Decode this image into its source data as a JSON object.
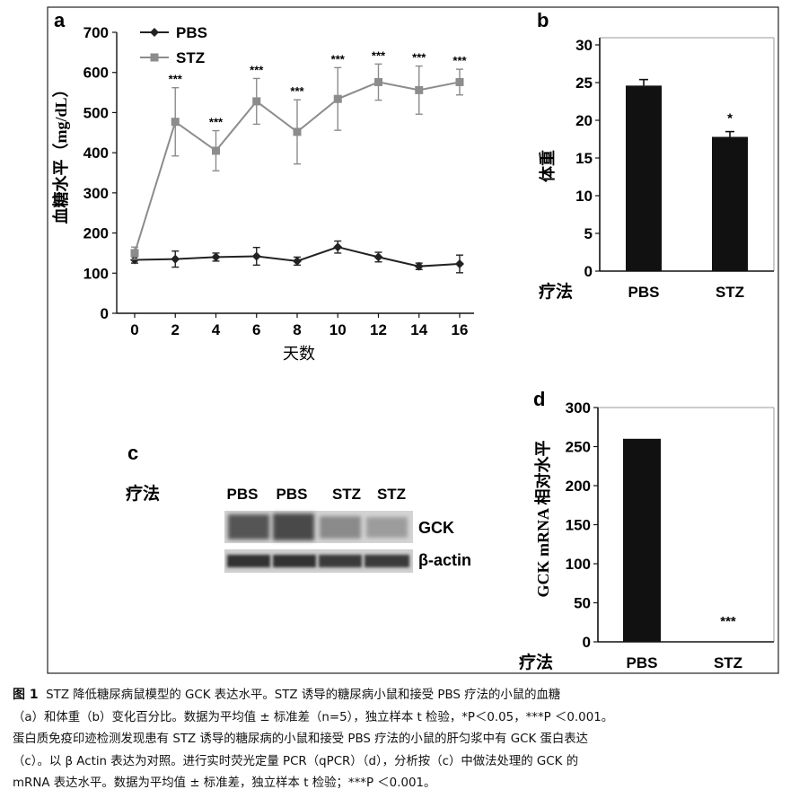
{
  "panel_a": {
    "label": "a",
    "ylabel": "血糖水平（mg/dL）",
    "xlabel": "天数",
    "legend": [
      {
        "name": "PBS",
        "marker": "diamond"
      },
      {
        "name": "STZ",
        "marker": "square"
      }
    ]
  },
  "panel_b": {
    "label": "b",
    "ylabel": "体重",
    "xlabel": "疗法",
    "annotations": [
      "*"
    ]
  },
  "panel_c": {
    "label": "c",
    "treatment_label": "疗法",
    "lanes": [
      "PBS",
      "PBS",
      "STZ",
      "STZ"
    ],
    "band_labels": [
      "GCK",
      "β-actin"
    ]
  },
  "panel_d": {
    "label": "d",
    "ylabel": "GCK mRNA 相对水平",
    "xlabel": "疗法",
    "annotations": [
      "***"
    ]
  },
  "chart_data": [
    {
      "id": "a",
      "type": "line",
      "title": "",
      "xlabel": "天数",
      "ylabel": "血糖水平（mg/dL）",
      "x": [
        0,
        2,
        4,
        6,
        8,
        10,
        12,
        14,
        16
      ],
      "xticks": [
        0,
        2,
        4,
        6,
        8,
        10,
        12,
        14,
        16
      ],
      "yticks": [
        0,
        100,
        200,
        300,
        400,
        500,
        600,
        700
      ],
      "xlim": [
        0,
        16
      ],
      "ylim": [
        0,
        700
      ],
      "legend_position": "top-left",
      "series": [
        {
          "name": "PBS",
          "marker": "diamond",
          "color": "#222222",
          "values": [
            133,
            135,
            140,
            142,
            130,
            165,
            140,
            117,
            123
          ],
          "errors": [
            8,
            20,
            10,
            22,
            10,
            15,
            12,
            8,
            22
          ]
        },
        {
          "name": "STZ",
          "marker": "square",
          "color": "#8c8c8c",
          "values": [
            150,
            477,
            405,
            528,
            452,
            534,
            576,
            556,
            576
          ],
          "errors": [
            15,
            85,
            50,
            57,
            80,
            78,
            45,
            60,
            32
          ]
        }
      ],
      "annotations": [
        "***",
        "***",
        "***",
        "***",
        "***",
        "***",
        "***",
        "***"
      ]
    },
    {
      "id": "b",
      "type": "bar",
      "xlabel": "疗法",
      "ylabel": "体重",
      "categories": [
        "PBS",
        "STZ"
      ],
      "values": [
        24.6,
        17.8
      ],
      "errors": [
        0.8,
        0.7
      ],
      "yticks": [
        0,
        5,
        10,
        15,
        20,
        25,
        30
      ],
      "ylim": [
        0,
        30
      ],
      "annotations": [
        "",
        "*"
      ]
    },
    {
      "id": "d",
      "type": "bar",
      "xlabel": "疗法",
      "ylabel": "GCK mRNA 相对水平",
      "categories": [
        "PBS",
        "STZ"
      ],
      "values": [
        260,
        0
      ],
      "yticks": [
        0,
        50,
        100,
        150,
        200,
        250,
        300
      ],
      "ylim": [
        0,
        300
      ],
      "annotations": [
        "",
        "***"
      ]
    }
  ],
  "caption": {
    "figure_label": "图 1",
    "lines": [
      "STZ 降低糖尿病鼠模型的 GCK 表达水平。STZ 诱导的糖尿病小鼠和接受 PBS 疗法的小鼠的血糖",
      "（a）和体重（b）变化百分比。数据为平均值 ± 标准差（n=5），独立样本 t 检验，*P＜0.05，***P ＜0.001。",
      "蛋白质免疫印迹检测发现患有 STZ 诱导的糖尿病的小鼠和接受 PBS 疗法的小鼠的肝匀浆中有 GCK 蛋白表达",
      "（c）。以 β  Actin 表达为对照。进行实时荧光定量 PCR（qPCR）（d），分析按（c）中做法处理的 GCK 的",
      "mRNA 表达水平。数据为平均值 ± 标准差，独立样本 t 检验；***P ＜0.001。"
    ]
  }
}
